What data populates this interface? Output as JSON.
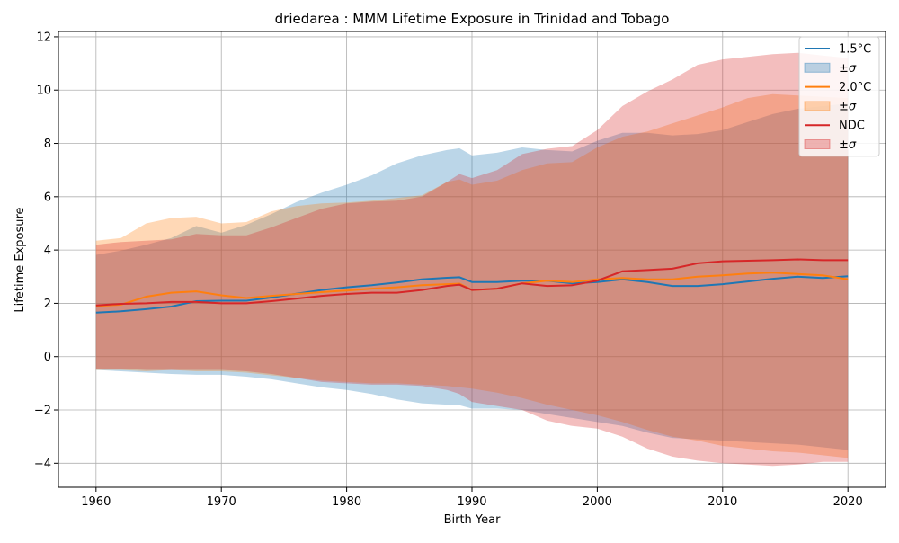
{
  "chart_data": {
    "type": "area",
    "title": "driedarea : MMM Lifetime Exposure in Trinidad and Tobago",
    "xlabel": "Birth Year",
    "ylabel": "Lifetime Exposure",
    "xlim": [
      1957,
      2023
    ],
    "ylim": [
      -4.9,
      12.2
    ],
    "xticks": [
      1960,
      1970,
      1980,
      1990,
      2000,
      2010,
      2020
    ],
    "yticks": [
      -4,
      -2,
      0,
      2,
      4,
      6,
      8,
      10,
      12
    ],
    "grid": true,
    "legend_position": "top-right",
    "x": [
      1960,
      1962,
      1964,
      1966,
      1968,
      1970,
      1972,
      1974,
      1976,
      1978,
      1980,
      1982,
      1984,
      1986,
      1988,
      1989,
      1990,
      1992,
      1994,
      1996,
      1998,
      2000,
      2002,
      2004,
      2006,
      2008,
      2010,
      2012,
      2014,
      2016,
      2018,
      2020
    ],
    "series": [
      {
        "name": "1.5°C",
        "band_name": "±σ",
        "color": "#1f77b4",
        "band_color": "#1f77b4",
        "band_alpha": 0.3,
        "mean": [
          1.65,
          1.7,
          1.78,
          1.88,
          2.08,
          2.1,
          2.1,
          2.22,
          2.36,
          2.5,
          2.6,
          2.68,
          2.78,
          2.9,
          2.96,
          2.98,
          2.8,
          2.8,
          2.85,
          2.85,
          2.75,
          2.8,
          2.9,
          2.8,
          2.65,
          2.65,
          2.72,
          2.82,
          2.92,
          3.0,
          2.95,
          3.02
        ],
        "upper": [
          3.82,
          3.98,
          4.2,
          4.45,
          4.9,
          4.65,
          4.95,
          5.35,
          5.8,
          6.15,
          6.45,
          6.8,
          7.25,
          7.55,
          7.75,
          7.82,
          7.55,
          7.65,
          7.85,
          7.75,
          7.7,
          8.1,
          8.4,
          8.4,
          8.3,
          8.35,
          8.5,
          8.8,
          9.1,
          9.3,
          9.4,
          9.5
        ],
        "lower": [
          -0.5,
          -0.55,
          -0.6,
          -0.65,
          -0.68,
          -0.68,
          -0.75,
          -0.85,
          -1.0,
          -1.15,
          -1.25,
          -1.4,
          -1.6,
          -1.75,
          -1.8,
          -1.82,
          -1.95,
          -1.95,
          -2.0,
          -2.15,
          -2.3,
          -2.45,
          -2.6,
          -2.85,
          -3.05,
          -3.1,
          -3.15,
          -3.2,
          -3.25,
          -3.3,
          -3.4,
          -3.5
        ]
      },
      {
        "name": "2.0°C",
        "band_name": "±σ",
        "color": "#ff7f0e",
        "band_color": "#ff7f0e",
        "band_alpha": 0.3,
        "mean": [
          1.9,
          1.95,
          2.25,
          2.4,
          2.45,
          2.3,
          2.2,
          2.28,
          2.35,
          2.42,
          2.48,
          2.55,
          2.6,
          2.68,
          2.72,
          2.74,
          2.5,
          2.55,
          2.75,
          2.85,
          2.8,
          2.9,
          2.95,
          2.9,
          2.9,
          3.0,
          3.05,
          3.12,
          3.15,
          3.1,
          3.05,
          2.9
        ],
        "upper": [
          4.35,
          4.45,
          5.0,
          5.2,
          5.25,
          5.0,
          5.05,
          5.45,
          5.65,
          5.75,
          5.78,
          5.85,
          5.95,
          6.05,
          6.55,
          6.65,
          6.45,
          6.6,
          7.0,
          7.25,
          7.3,
          7.85,
          8.25,
          8.45,
          8.75,
          9.05,
          9.35,
          9.7,
          9.85,
          9.8,
          9.75,
          9.7
        ],
        "lower": [
          -0.5,
          -0.5,
          -0.55,
          -0.5,
          -0.55,
          -0.55,
          -0.6,
          -0.7,
          -0.8,
          -0.9,
          -0.95,
          -1.0,
          -1.0,
          -1.05,
          -1.1,
          -1.15,
          -1.2,
          -1.35,
          -1.55,
          -1.8,
          -2.0,
          -2.2,
          -2.45,
          -2.75,
          -3.0,
          -3.15,
          -3.35,
          -3.45,
          -3.55,
          -3.6,
          -3.7,
          -3.8
        ]
      },
      {
        "name": "NDC",
        "band_name": "±σ",
        "color": "#d62728",
        "band_color": "#d62728",
        "band_alpha": 0.3,
        "mean": [
          1.92,
          1.98,
          2.0,
          2.05,
          2.05,
          2.0,
          2.0,
          2.08,
          2.18,
          2.28,
          2.35,
          2.4,
          2.4,
          2.5,
          2.65,
          2.7,
          2.5,
          2.55,
          2.75,
          2.65,
          2.68,
          2.85,
          3.2,
          3.25,
          3.3,
          3.5,
          3.58,
          3.6,
          3.62,
          3.65,
          3.62,
          3.62
        ],
        "upper": [
          4.2,
          4.3,
          4.35,
          4.4,
          4.6,
          4.55,
          4.55,
          4.85,
          5.2,
          5.55,
          5.75,
          5.82,
          5.85,
          6.0,
          6.55,
          6.85,
          6.7,
          7.0,
          7.6,
          7.8,
          7.9,
          8.5,
          9.4,
          9.95,
          10.4,
          10.95,
          11.15,
          11.25,
          11.35,
          11.4,
          11.3,
          11.2
        ],
        "lower": [
          -0.45,
          -0.45,
          -0.5,
          -0.5,
          -0.5,
          -0.5,
          -0.55,
          -0.65,
          -0.8,
          -0.95,
          -1.0,
          -1.05,
          -1.05,
          -1.1,
          -1.25,
          -1.4,
          -1.7,
          -1.85,
          -2.0,
          -2.4,
          -2.6,
          -2.7,
          -3.0,
          -3.45,
          -3.75,
          -3.9,
          -4.0,
          -4.05,
          -4.1,
          -4.05,
          -3.95,
          -3.95
        ]
      }
    ]
  }
}
